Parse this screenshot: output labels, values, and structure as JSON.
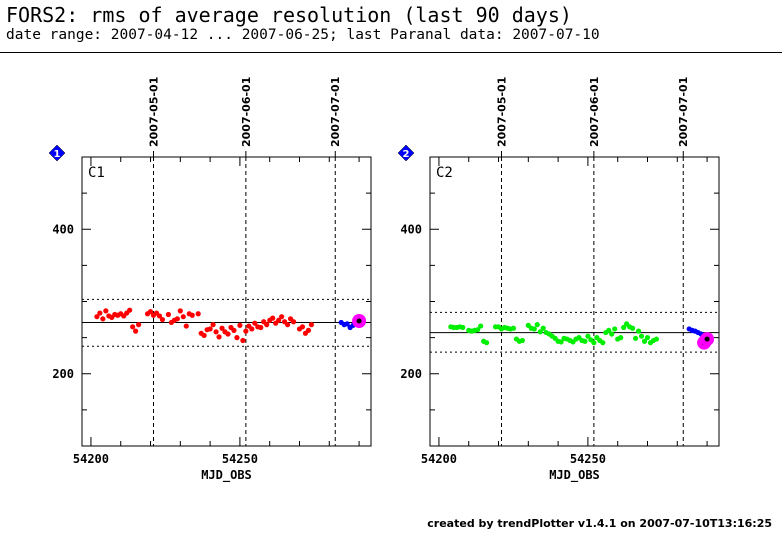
{
  "header": {
    "title": "FORS2: rms of average resolution (last 90 days)",
    "subtitle": "date range: 2007-04-12 ... 2007-06-25; last Paranal data: 2007-07-10"
  },
  "footer": {
    "credit": "created by trendPlotter v1.4.1 on 2007-07-10T13:16:25"
  },
  "colors": {
    "red_series": "#ff0000",
    "green_series": "#00ee00",
    "blue_series": "#0000ff",
    "highlight": "#ff00ff",
    "badge": "#0000ff"
  },
  "chart_data": [
    {
      "type": "scatter",
      "badge": "1",
      "label": "C1",
      "xlabel": "MJD_OBS",
      "xlim": [
        54197,
        54294
      ],
      "ylim": [
        100,
        500
      ],
      "x_ticks": [
        54200,
        54250
      ],
      "y_ticks": [
        200,
        400
      ],
      "date_markers": [
        {
          "x": 54221,
          "label": "2007-05-01"
        },
        {
          "x": 54252,
          "label": "2007-06-01"
        },
        {
          "x": 54282,
          "label": "2007-07-01"
        }
      ],
      "reference_line": 271,
      "band": [
        238,
        303
      ],
      "series": [
        {
          "color": "red",
          "points": [
            [
              54202,
              279
            ],
            [
              54203,
              284
            ],
            [
              54204,
              276
            ],
            [
              54205,
              287
            ],
            [
              54206,
              280
            ],
            [
              54207,
              278
            ],
            [
              54208,
              282
            ],
            [
              54209,
              281
            ],
            [
              54210,
              283
            ],
            [
              54211,
              280
            ],
            [
              54212,
              284
            ],
            [
              54213,
              288
            ],
            [
              54214,
              265
            ],
            [
              54215,
              259
            ],
            [
              54216,
              268
            ],
            [
              54219,
              283
            ],
            [
              54220,
              286
            ],
            [
              54221,
              281
            ],
            [
              54222,
              284
            ],
            [
              54223,
              280
            ],
            [
              54224,
              275
            ],
            [
              54226,
              282
            ],
            [
              54227,
              271
            ],
            [
              54228,
              274
            ],
            [
              54229,
              276
            ],
            [
              54230,
              287
            ],
            [
              54231,
              279
            ],
            [
              54232,
              266
            ],
            [
              54233,
              283
            ],
            [
              54234,
              281
            ],
            [
              54236,
              283
            ],
            [
              54237,
              256
            ],
            [
              54238,
              253
            ],
            [
              54239,
              261
            ],
            [
              54240,
              262
            ],
            [
              54241,
              268
            ],
            [
              54242,
              258
            ],
            [
              54243,
              251
            ],
            [
              54244,
              263
            ],
            [
              54245,
              258
            ],
            [
              54246,
              255
            ],
            [
              54247,
              264
            ],
            [
              54248,
              260
            ],
            [
              54249,
              250
            ],
            [
              54250,
              267
            ],
            [
              54251,
              246
            ],
            [
              54252,
              259
            ],
            [
              54253,
              266
            ],
            [
              54254,
              262
            ],
            [
              54255,
              270
            ],
            [
              54256,
              265
            ],
            [
              54257,
              264
            ],
            [
              54258,
              272
            ],
            [
              54259,
              268
            ],
            [
              54260,
              274
            ],
            [
              54261,
              277
            ],
            [
              54262,
              270
            ],
            [
              54263,
              274
            ],
            [
              54264,
              279
            ],
            [
              54265,
              272
            ],
            [
              54266,
              268
            ],
            [
              54267,
              276
            ],
            [
              54268,
              272
            ],
            [
              54270,
              262
            ],
            [
              54271,
              265
            ],
            [
              54272,
              256
            ],
            [
              54273,
              260
            ],
            [
              54274,
              268
            ]
          ]
        },
        {
          "color": "blue",
          "points": [
            [
              54284,
              271
            ],
            [
              54285,
              268
            ],
            [
              54286,
              269
            ],
            [
              54287,
              264
            ],
            [
              54288,
              267
            ],
            [
              54289,
              272
            ]
          ]
        },
        {
          "color": "magenta",
          "points": [
            [
              54290,
              273
            ]
          ]
        }
      ]
    },
    {
      "type": "scatter",
      "badge": "2",
      "label": "C2",
      "xlabel": "MJD_OBS",
      "xlim": [
        54197,
        54294
      ],
      "ylim": [
        100,
        500
      ],
      "x_ticks": [
        54200,
        54250
      ],
      "y_ticks": [
        200,
        400
      ],
      "date_markers": [
        {
          "x": 54221,
          "label": "2007-05-01"
        },
        {
          "x": 54252,
          "label": "2007-06-01"
        },
        {
          "x": 54282,
          "label": "2007-07-01"
        }
      ],
      "reference_line": 257,
      "band": [
        230,
        285
      ],
      "series": [
        {
          "color": "green",
          "points": [
            [
              54204,
              265
            ],
            [
              54205,
              264
            ],
            [
              54206,
              264
            ],
            [
              54207,
              265
            ],
            [
              54208,
              264
            ],
            [
              54210,
              260
            ],
            [
              54211,
              259
            ],
            [
              54212,
              260
            ],
            [
              54213,
              261
            ],
            [
              54214,
              266
            ],
            [
              54215,
              245
            ],
            [
              54216,
              243
            ],
            [
              54219,
              265
            ],
            [
              54220,
              265
            ],
            [
              54221,
              262
            ],
            [
              54222,
              264
            ],
            [
              54223,
              263
            ],
            [
              54224,
              262
            ],
            [
              54225,
              263
            ],
            [
              54226,
              248
            ],
            [
              54227,
              245
            ],
            [
              54228,
              246
            ],
            [
              54230,
              267
            ],
            [
              54231,
              263
            ],
            [
              54232,
              262
            ],
            [
              54233,
              268
            ],
            [
              54234,
              258
            ],
            [
              54235,
              263
            ],
            [
              54236,
              257
            ],
            [
              54237,
              255
            ],
            [
              54238,
              252
            ],
            [
              54239,
              249
            ],
            [
              54240,
              245
            ],
            [
              54241,
              244
            ],
            [
              54242,
              249
            ],
            [
              54243,
              248
            ],
            [
              54244,
              246
            ],
            [
              54245,
              244
            ],
            [
              54246,
              248
            ],
            [
              54247,
              250
            ],
            [
              54248,
              246
            ],
            [
              54249,
              245
            ],
            [
              54250,
              252
            ],
            [
              54251,
              247
            ],
            [
              54252,
              243
            ],
            [
              54253,
              250
            ],
            [
              54254,
              246
            ],
            [
              54255,
              243
            ],
            [
              54256,
              257
            ],
            [
              54257,
              260
            ],
            [
              54258,
              255
            ],
            [
              54259,
              262
            ],
            [
              54260,
              248
            ],
            [
              54261,
              250
            ],
            [
              54262,
              264
            ],
            [
              54263,
              269
            ],
            [
              54264,
              265
            ],
            [
              54265,
              263
            ],
            [
              54266,
              249
            ],
            [
              54267,
              259
            ],
            [
              54268,
              252
            ],
            [
              54269,
              245
            ],
            [
              54270,
              250
            ],
            [
              54271,
              243
            ],
            [
              54272,
              246
            ],
            [
              54273,
              248
            ]
          ]
        },
        {
          "color": "blue",
          "points": [
            [
              54284,
              262
            ],
            [
              54285,
              260
            ],
            [
              54286,
              259
            ],
            [
              54287,
              257
            ],
            [
              54288,
              255
            ]
          ]
        },
        {
          "color": "magenta",
          "points": [
            [
              54289,
              243
            ],
            [
              54290,
              248
            ]
          ]
        }
      ]
    }
  ]
}
